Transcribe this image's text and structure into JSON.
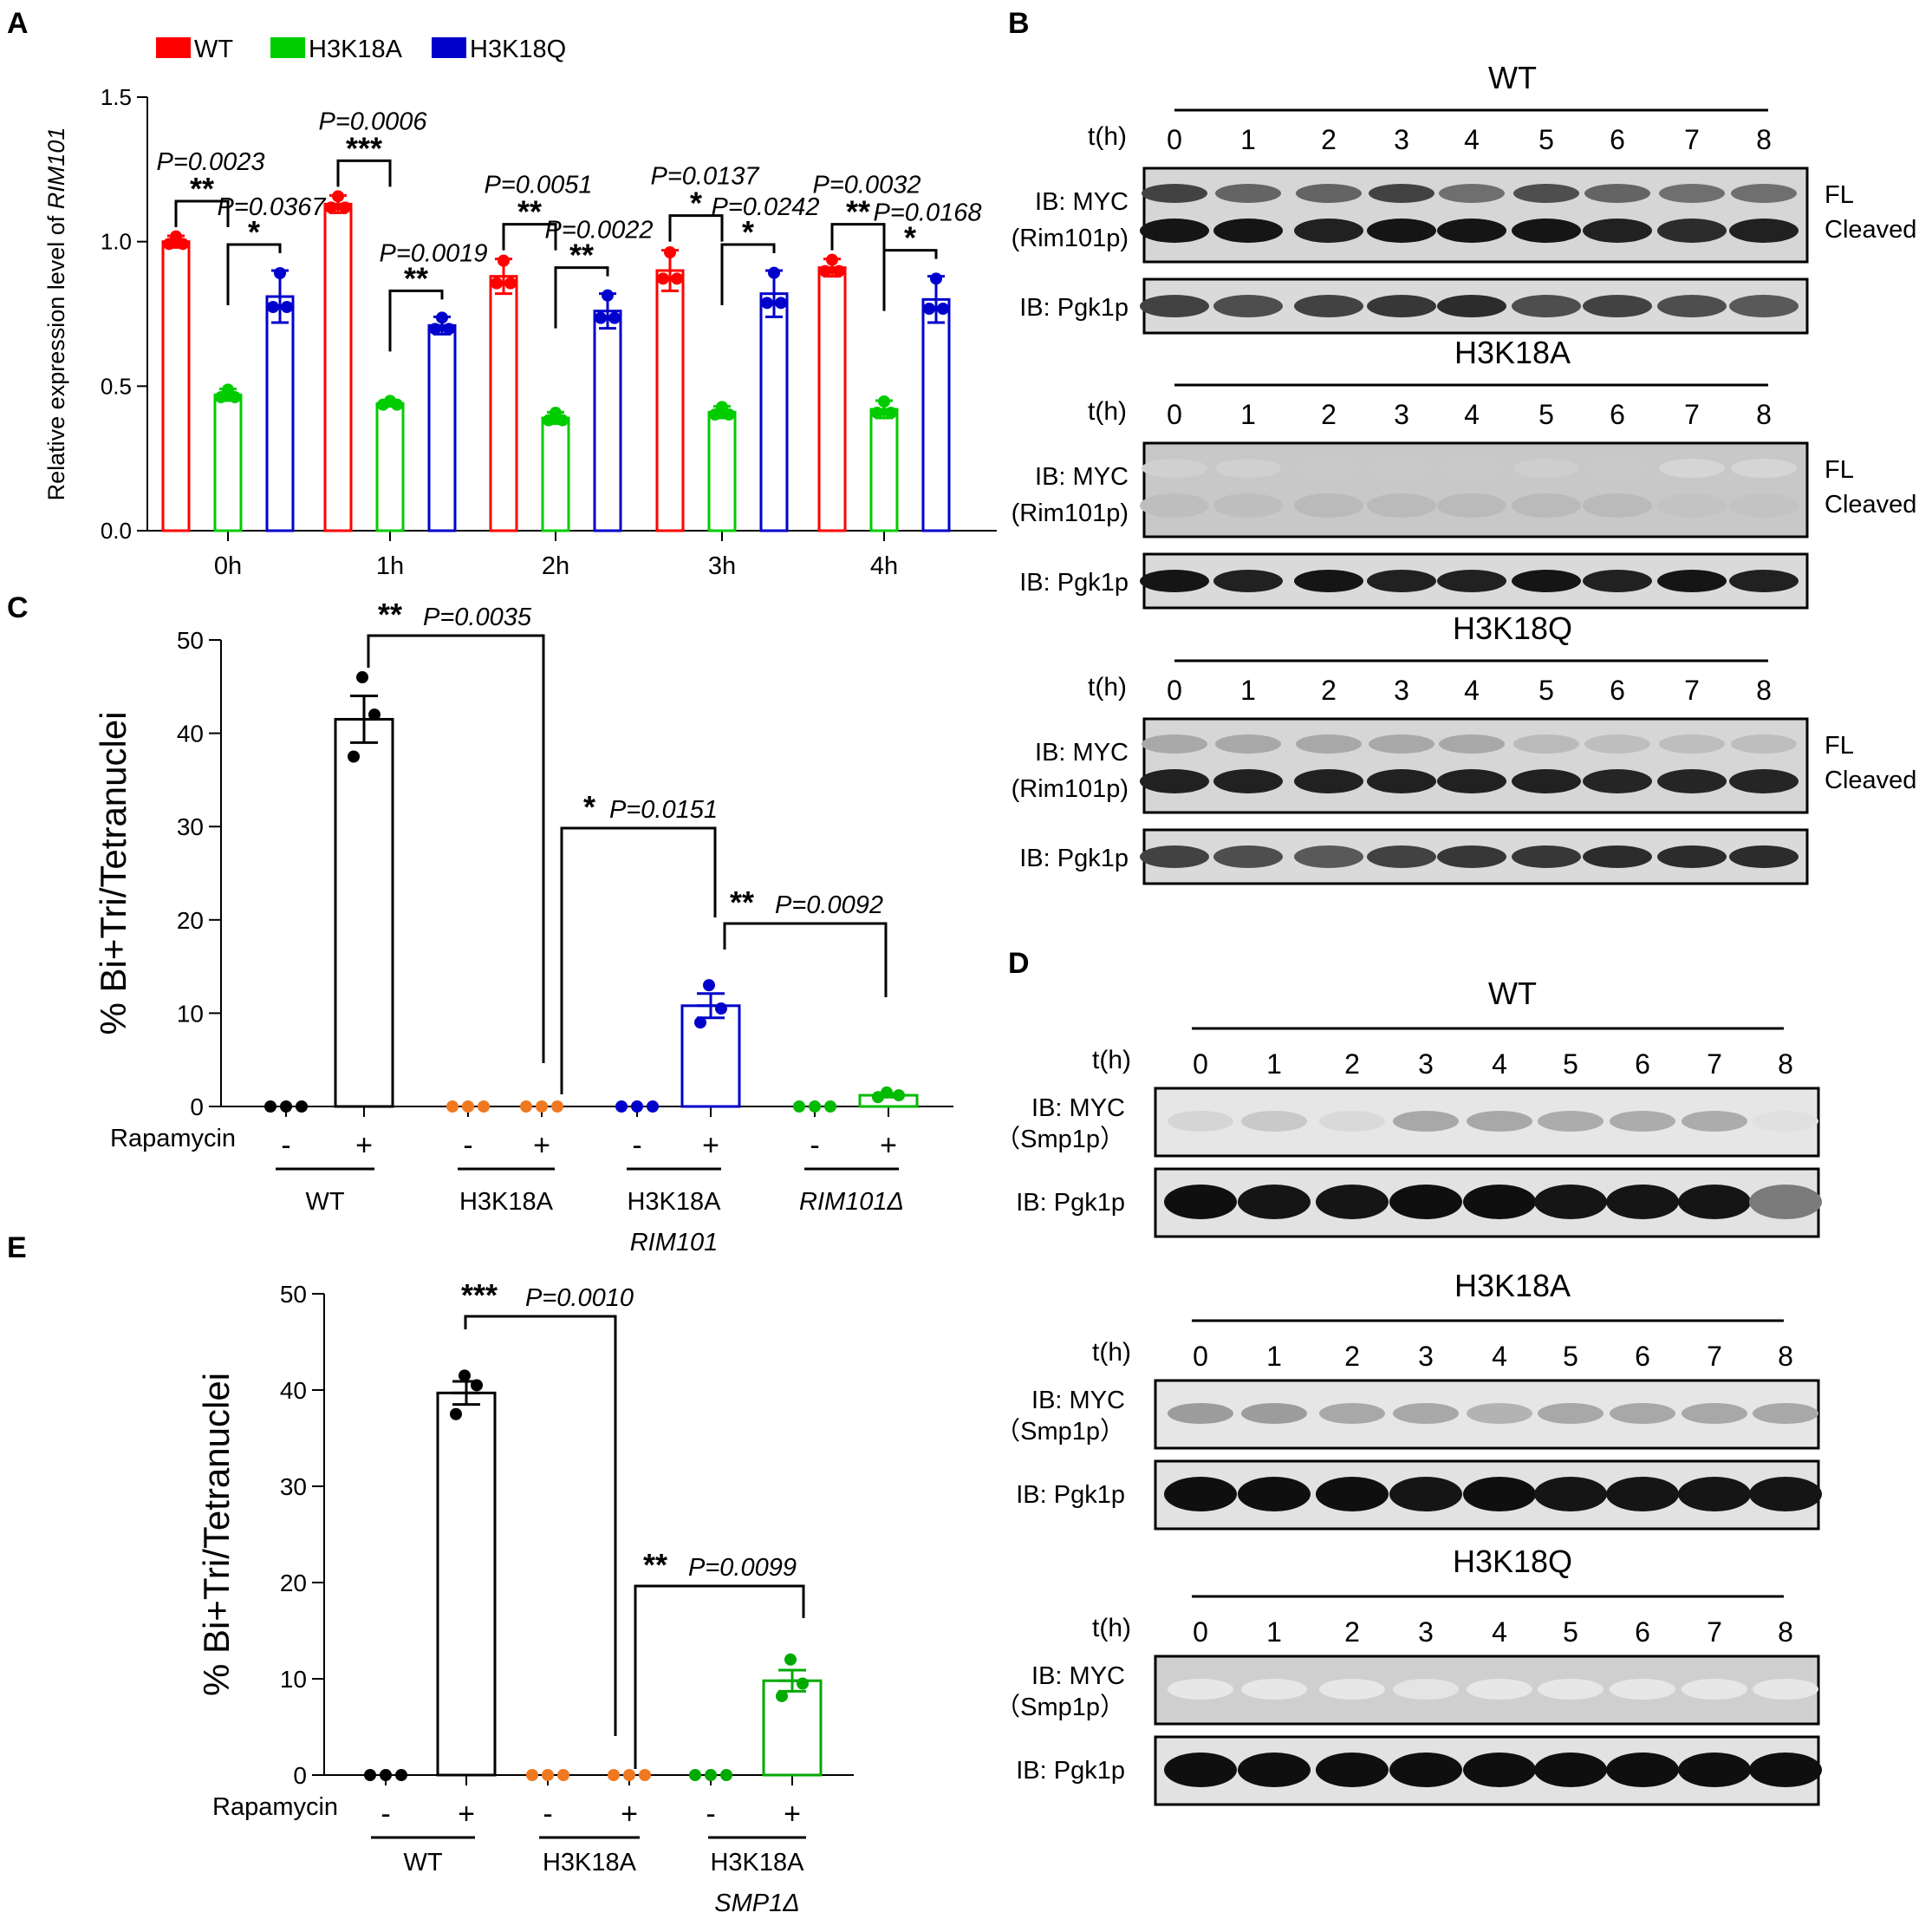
{
  "chart_data": [
    {
      "panel": "A",
      "type": "bar",
      "ylabel_prefix": "Relative expression level of ",
      "ylabel_gene": "RIM101",
      "ylim": [
        0,
        1.5
      ],
      "yticks": [
        0.0,
        0.5,
        1.0,
        1.5
      ],
      "ytick_labels": [
        "0.0",
        "0.5",
        "1.0",
        "1.5"
      ],
      "categories": [
        "0h",
        "1h",
        "2h",
        "3h",
        "4h"
      ],
      "series": [
        {
          "name": "WT",
          "color": "#ff0000",
          "values": [
            1.0,
            1.13,
            0.88,
            0.9,
            0.91
          ],
          "errors": [
            0.02,
            0.03,
            0.06,
            0.07,
            0.03
          ]
        },
        {
          "name": "H3K18A",
          "color": "#00cc00",
          "values": [
            0.47,
            0.44,
            0.39,
            0.41,
            0.42
          ],
          "errors": [
            0.02,
            0.01,
            0.02,
            0.02,
            0.03
          ]
        },
        {
          "name": "H3K18Q",
          "color": "#0000cc",
          "values": [
            0.81,
            0.71,
            0.76,
            0.82,
            0.8
          ],
          "errors": [
            0.09,
            0.03,
            0.06,
            0.08,
            0.08
          ]
        }
      ],
      "comparisons": [
        {
          "group": "0h",
          "pair": "WT-H3K18A",
          "stars": "**",
          "p": "P=0.0023"
        },
        {
          "group": "0h",
          "pair": "H3K18A-H3K18Q",
          "stars": "*",
          "p": "P=0.0367"
        },
        {
          "group": "1h",
          "pair": "WT-H3K18A",
          "stars": "***",
          "p": "P=0.0006"
        },
        {
          "group": "1h",
          "pair": "H3K18A-H3K18Q",
          "stars": "**",
          "p": "P=0.0019"
        },
        {
          "group": "2h",
          "pair": "WT-H3K18A",
          "stars": "**",
          "p": "P=0.0051"
        },
        {
          "group": "2h",
          "pair": "H3K18A-H3K18Q",
          "stars": "**",
          "p": "P=0.0022"
        },
        {
          "group": "3h",
          "pair": "WT-H3K18A",
          "stars": "*",
          "p": "P=0.0137"
        },
        {
          "group": "3h",
          "pair": "H3K18A-H3K18Q",
          "stars": "*",
          "p": "P=0.0242"
        },
        {
          "group": "4h",
          "pair": "WT-H3K18A",
          "stars": "**",
          "p": "P=0.0032"
        },
        {
          "group": "4h",
          "pair": "H3K18A-H3K18Q",
          "stars": "*",
          "p": "P=0.0168"
        }
      ]
    },
    {
      "panel": "C",
      "type": "bar",
      "ylabel": "% Bi+Tri/Tetranuclei",
      "ylim": [
        0,
        50
      ],
      "yticks": [
        0,
        10,
        20,
        30,
        40,
        50
      ],
      "treatment_label": "Rapamycin",
      "bars": [
        {
          "group": "WT",
          "treatment": "-",
          "value": 0,
          "color": "#000000",
          "points": [
            0,
            0,
            0
          ]
        },
        {
          "group": "WT",
          "treatment": "+",
          "value": 41.5,
          "sem": 2.5,
          "color": "#000000",
          "points": [
            46,
            42,
            37.5
          ]
        },
        {
          "group": "H3K18A",
          "treatment": "-",
          "value": 0,
          "color": "#f07820",
          "points": [
            0,
            0,
            0
          ]
        },
        {
          "group": "H3K18A",
          "treatment": "+",
          "value": 0,
          "color": "#f07820",
          "points": [
            0,
            0,
            0
          ]
        },
        {
          "group": "H3K18A RIM101",
          "treatment": "-",
          "value": 0,
          "color": "#0000cc",
          "points": [
            0,
            0,
            0
          ]
        },
        {
          "group": "H3K18A RIM101",
          "treatment": "+",
          "value": 10.8,
          "sem": 1.3,
          "color": "#0000cc",
          "points": [
            13,
            10.5,
            9
          ]
        },
        {
          "group": "RIM101Δ",
          "treatment": "-",
          "value": 0,
          "color": "#00bb00",
          "points": [
            0,
            0,
            0
          ]
        },
        {
          "group": "RIM101Δ",
          "treatment": "+",
          "value": 1.2,
          "sem": 0.2,
          "color": "#00bb00",
          "points": [
            1.5,
            1.2,
            1.0
          ]
        }
      ],
      "groups": [
        {
          "label": "WT",
          "italic_label": ""
        },
        {
          "label": "H3K18A",
          "italic_label": ""
        },
        {
          "label": "H3K18A",
          "italic_label": "RIM101"
        },
        {
          "label": "",
          "italic_label": "RIM101Δ"
        }
      ],
      "comparisons": [
        {
          "from": "WT +",
          "to": "H3K18A +",
          "stars": "**",
          "p": "P=0.0035"
        },
        {
          "from": "H3K18A +",
          "to": "H3K18A RIM101 +",
          "stars": "*",
          "p": "P=0.0151"
        },
        {
          "from": "H3K18A RIM101 +",
          "to": "RIM101Δ +",
          "stars": "**",
          "p": "P=0.0092"
        }
      ]
    },
    {
      "panel": "E",
      "type": "bar",
      "ylabel": "% Bi+Tri/Tetranuclei",
      "ylim": [
        0,
        50
      ],
      "yticks": [
        0,
        10,
        20,
        30,
        40,
        50
      ],
      "treatment_label": "Rapamycin",
      "bars": [
        {
          "group": "WT",
          "treatment": "-",
          "value": 0,
          "color": "#000000",
          "points": [
            0,
            0,
            0
          ]
        },
        {
          "group": "WT",
          "treatment": "+",
          "value": 39.7,
          "sem": 1.2,
          "color": "#000000",
          "points": [
            41.5,
            40.5,
            37.5
          ]
        },
        {
          "group": "H3K18A",
          "treatment": "-",
          "value": 0,
          "color": "#f07820",
          "points": [
            0,
            0,
            0
          ]
        },
        {
          "group": "H3K18A",
          "treatment": "+",
          "value": 0,
          "color": "#f07820",
          "points": [
            0,
            0,
            0
          ]
        },
        {
          "group": "H3K18A SMP1Δ",
          "treatment": "-",
          "value": 0,
          "color": "#00aa00",
          "points": [
            0,
            0,
            0
          ]
        },
        {
          "group": "H3K18A SMP1Δ",
          "treatment": "+",
          "value": 9.8,
          "sem": 1.1,
          "color": "#00aa00",
          "points": [
            12,
            9.5,
            8.2
          ]
        }
      ],
      "groups": [
        {
          "label": "WT",
          "italic_label": ""
        },
        {
          "label": "H3K18A",
          "italic_label": ""
        },
        {
          "label": "H3K18A",
          "italic_label": "SMP1Δ"
        }
      ],
      "comparisons": [
        {
          "from": "WT +",
          "to": "H3K18A +",
          "stars": "***",
          "p": "P=0.0010"
        },
        {
          "from": "H3K18A +",
          "to": "H3K18A SMP1Δ +",
          "stars": "**",
          "p": "P=0.0099"
        }
      ]
    }
  ],
  "panels": {
    "A": "A",
    "B": "B",
    "C": "C",
    "D": "D",
    "E": "E"
  },
  "blots": {
    "B": [
      {
        "title": "WT",
        "time_label": "t(h)",
        "times": [
          "0",
          "1",
          "2",
          "3",
          "4",
          "5",
          "6",
          "7",
          "8"
        ],
        "target_label_1": "IB: MYC",
        "target_label_2": "(Rim101p)",
        "band_labels": [
          "FL",
          "Cleaved"
        ],
        "loading_label": "IB: Pgk1p",
        "fl_intensity": [
          0.75,
          0.6,
          0.6,
          0.75,
          0.55,
          0.7,
          0.6,
          0.55,
          0.55
        ],
        "cleaved_intensity": [
          0.95,
          0.95,
          0.9,
          0.95,
          0.95,
          0.95,
          0.9,
          0.85,
          0.9
        ],
        "loading_intensity": [
          0.75,
          0.7,
          0.75,
          0.8,
          0.85,
          0.7,
          0.75,
          0.7,
          0.65
        ]
      },
      {
        "title": "H3K18A",
        "time_label": "t(h)",
        "times": [
          "0",
          "1",
          "2",
          "3",
          "4",
          "5",
          "6",
          "7",
          "8"
        ],
        "target_label_1": "IB: MYC",
        "target_label_2": "(Rim101p)",
        "band_labels": [
          "FL",
          "Cleaved"
        ],
        "loading_label": "IB: Pgk1p",
        "fl_intensity": [
          0.12,
          0.12,
          0.15,
          0.15,
          0.15,
          0.13,
          0.15,
          0.1,
          0.1
        ],
        "cleaved_intensity": [
          0.2,
          0.2,
          0.22,
          0.22,
          0.22,
          0.22,
          0.22,
          0.18,
          0.18
        ],
        "loading_intensity": [
          0.95,
          0.9,
          0.95,
          0.9,
          0.9,
          0.95,
          0.9,
          0.95,
          0.9
        ]
      },
      {
        "title": "H3K18Q",
        "time_label": "t(h)",
        "times": [
          "0",
          "1",
          "2",
          "3",
          "4",
          "5",
          "6",
          "7",
          "8"
        ],
        "target_label_1": "IB: MYC",
        "target_label_2": "(Rim101p)",
        "band_labels": [
          "FL",
          "Cleaved"
        ],
        "loading_label": "IB: Pgk1p",
        "fl_intensity": [
          0.3,
          0.3,
          0.3,
          0.3,
          0.3,
          0.22,
          0.2,
          0.2,
          0.2
        ],
        "cleaved_intensity": [
          0.9,
          0.9,
          0.9,
          0.9,
          0.9,
          0.9,
          0.88,
          0.88,
          0.88
        ],
        "loading_intensity": [
          0.75,
          0.7,
          0.65,
          0.75,
          0.8,
          0.8,
          0.85,
          0.85,
          0.85
        ]
      }
    ],
    "D": [
      {
        "title": "WT",
        "time_label": "t(h)",
        "times": [
          "0",
          "1",
          "2",
          "3",
          "4",
          "5",
          "6",
          "7",
          "8"
        ],
        "target_label_1": "IB: MYC",
        "target_label_2": "（Smp1p）",
        "loading_label": "IB: Pgk1p",
        "target_intensity": [
          0.1,
          0.15,
          0.08,
          0.3,
          0.3,
          0.28,
          0.28,
          0.28,
          0.05
        ],
        "loading_intensity": [
          0.98,
          0.95,
          0.95,
          0.98,
          0.98,
          0.95,
          0.95,
          0.95,
          0.5
        ]
      },
      {
        "title": "H3K18A",
        "time_label": "t(h)",
        "times": [
          "0",
          "1",
          "2",
          "3",
          "4",
          "5",
          "6",
          "7",
          "8"
        ],
        "target_label_1": "IB: MYC",
        "target_label_2": "（Smp1p）",
        "loading_label": "IB: Pgk1p",
        "target_intensity": [
          0.35,
          0.35,
          0.3,
          0.3,
          0.25,
          0.3,
          0.3,
          0.3,
          0.3
        ],
        "loading_intensity": [
          0.98,
          0.98,
          0.98,
          0.95,
          0.98,
          0.95,
          0.95,
          0.95,
          0.95
        ]
      },
      {
        "title": "H3K18Q",
        "time_label": "t(h)",
        "times": [
          "0",
          "1",
          "2",
          "3",
          "4",
          "5",
          "6",
          "7",
          "8"
        ],
        "target_label_1": "IB: MYC",
        "target_label_2": "（Smp1p）",
        "loading_label": "IB: Pgk1p",
        "target_intensity": [
          0.02,
          0.02,
          0.02,
          0.03,
          0.02,
          0.02,
          0.02,
          0.02,
          0.02
        ],
        "loading_intensity": [
          0.98,
          0.98,
          0.98,
          0.98,
          0.98,
          0.98,
          0.98,
          0.98,
          0.98
        ]
      }
    ]
  }
}
